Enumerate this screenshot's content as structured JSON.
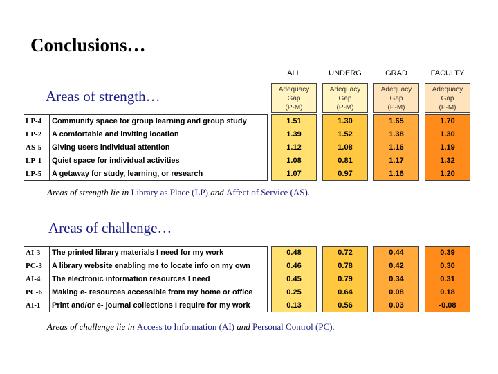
{
  "title": "Conclusions…",
  "columns": [
    "ALL",
    "UNDERG",
    "GRAD",
    "FACULTY"
  ],
  "subheader": [
    "Adequacy",
    "Gap",
    "(P-M)"
  ],
  "strength": {
    "heading": "Areas of strength…",
    "rows": [
      {
        "code": "LP-4",
        "label": "Community space for group learning and group study",
        "values": [
          "1.51",
          "1.30",
          "1.65",
          "1.70"
        ]
      },
      {
        "code": "LP-2",
        "label": "A comfortable and inviting location",
        "values": [
          "1.39",
          "1.52",
          "1.38",
          "1.30"
        ]
      },
      {
        "code": "AS-5",
        "label": "Giving users individual attention",
        "values": [
          "1.12",
          "1.08",
          "1.16",
          "1.19"
        ]
      },
      {
        "code": "LP-1",
        "label": "Quiet space for individual activities",
        "values": [
          "1.08",
          "0.81",
          "1.17",
          "1.32"
        ]
      },
      {
        "code": "LP-5",
        "label": "A getaway for study, learning, or research",
        "values": [
          "1.07",
          "0.97",
          "1.16",
          "1.20"
        ]
      }
    ],
    "note": {
      "pre": "Areas of strength lie in ",
      "hl1": "Library as Place (LP)",
      "mid": " and ",
      "hl2": "Affect of Service (AS)",
      "post": "."
    }
  },
  "challenge": {
    "heading": "Areas of challenge…",
    "rows": [
      {
        "code": "AI-3",
        "label": "The printed library materials I need for my work",
        "values": [
          "0.48",
          "0.72",
          "0.44",
          "0.39"
        ]
      },
      {
        "code": "PC-3",
        "label": "A library website enabling me to locate info on my own",
        "values": [
          "0.46",
          "0.78",
          "0.42",
          "0.30"
        ]
      },
      {
        "code": "AI-4",
        "label": "The electronic information resources I need",
        "values": [
          "0.45",
          "0.79",
          "0.34",
          "0.31"
        ]
      },
      {
        "code": "PC-6",
        "label": "Making e- resources accessible from my home or office",
        "values": [
          "0.25",
          "0.64",
          "0.08",
          "0.18"
        ]
      },
      {
        "code": "AI-1",
        "label": "Print and/or e- journal collections I require for my work",
        "values": [
          "0.13",
          "0.56",
          "0.03",
          "-0.08"
        ]
      }
    ],
    "note": {
      "pre": "Areas of challenge lie in ",
      "hl1": "Access to Information (AI)",
      "mid": " and ",
      "hl2": "Personal Control (PC)",
      "post": "."
    }
  }
}
